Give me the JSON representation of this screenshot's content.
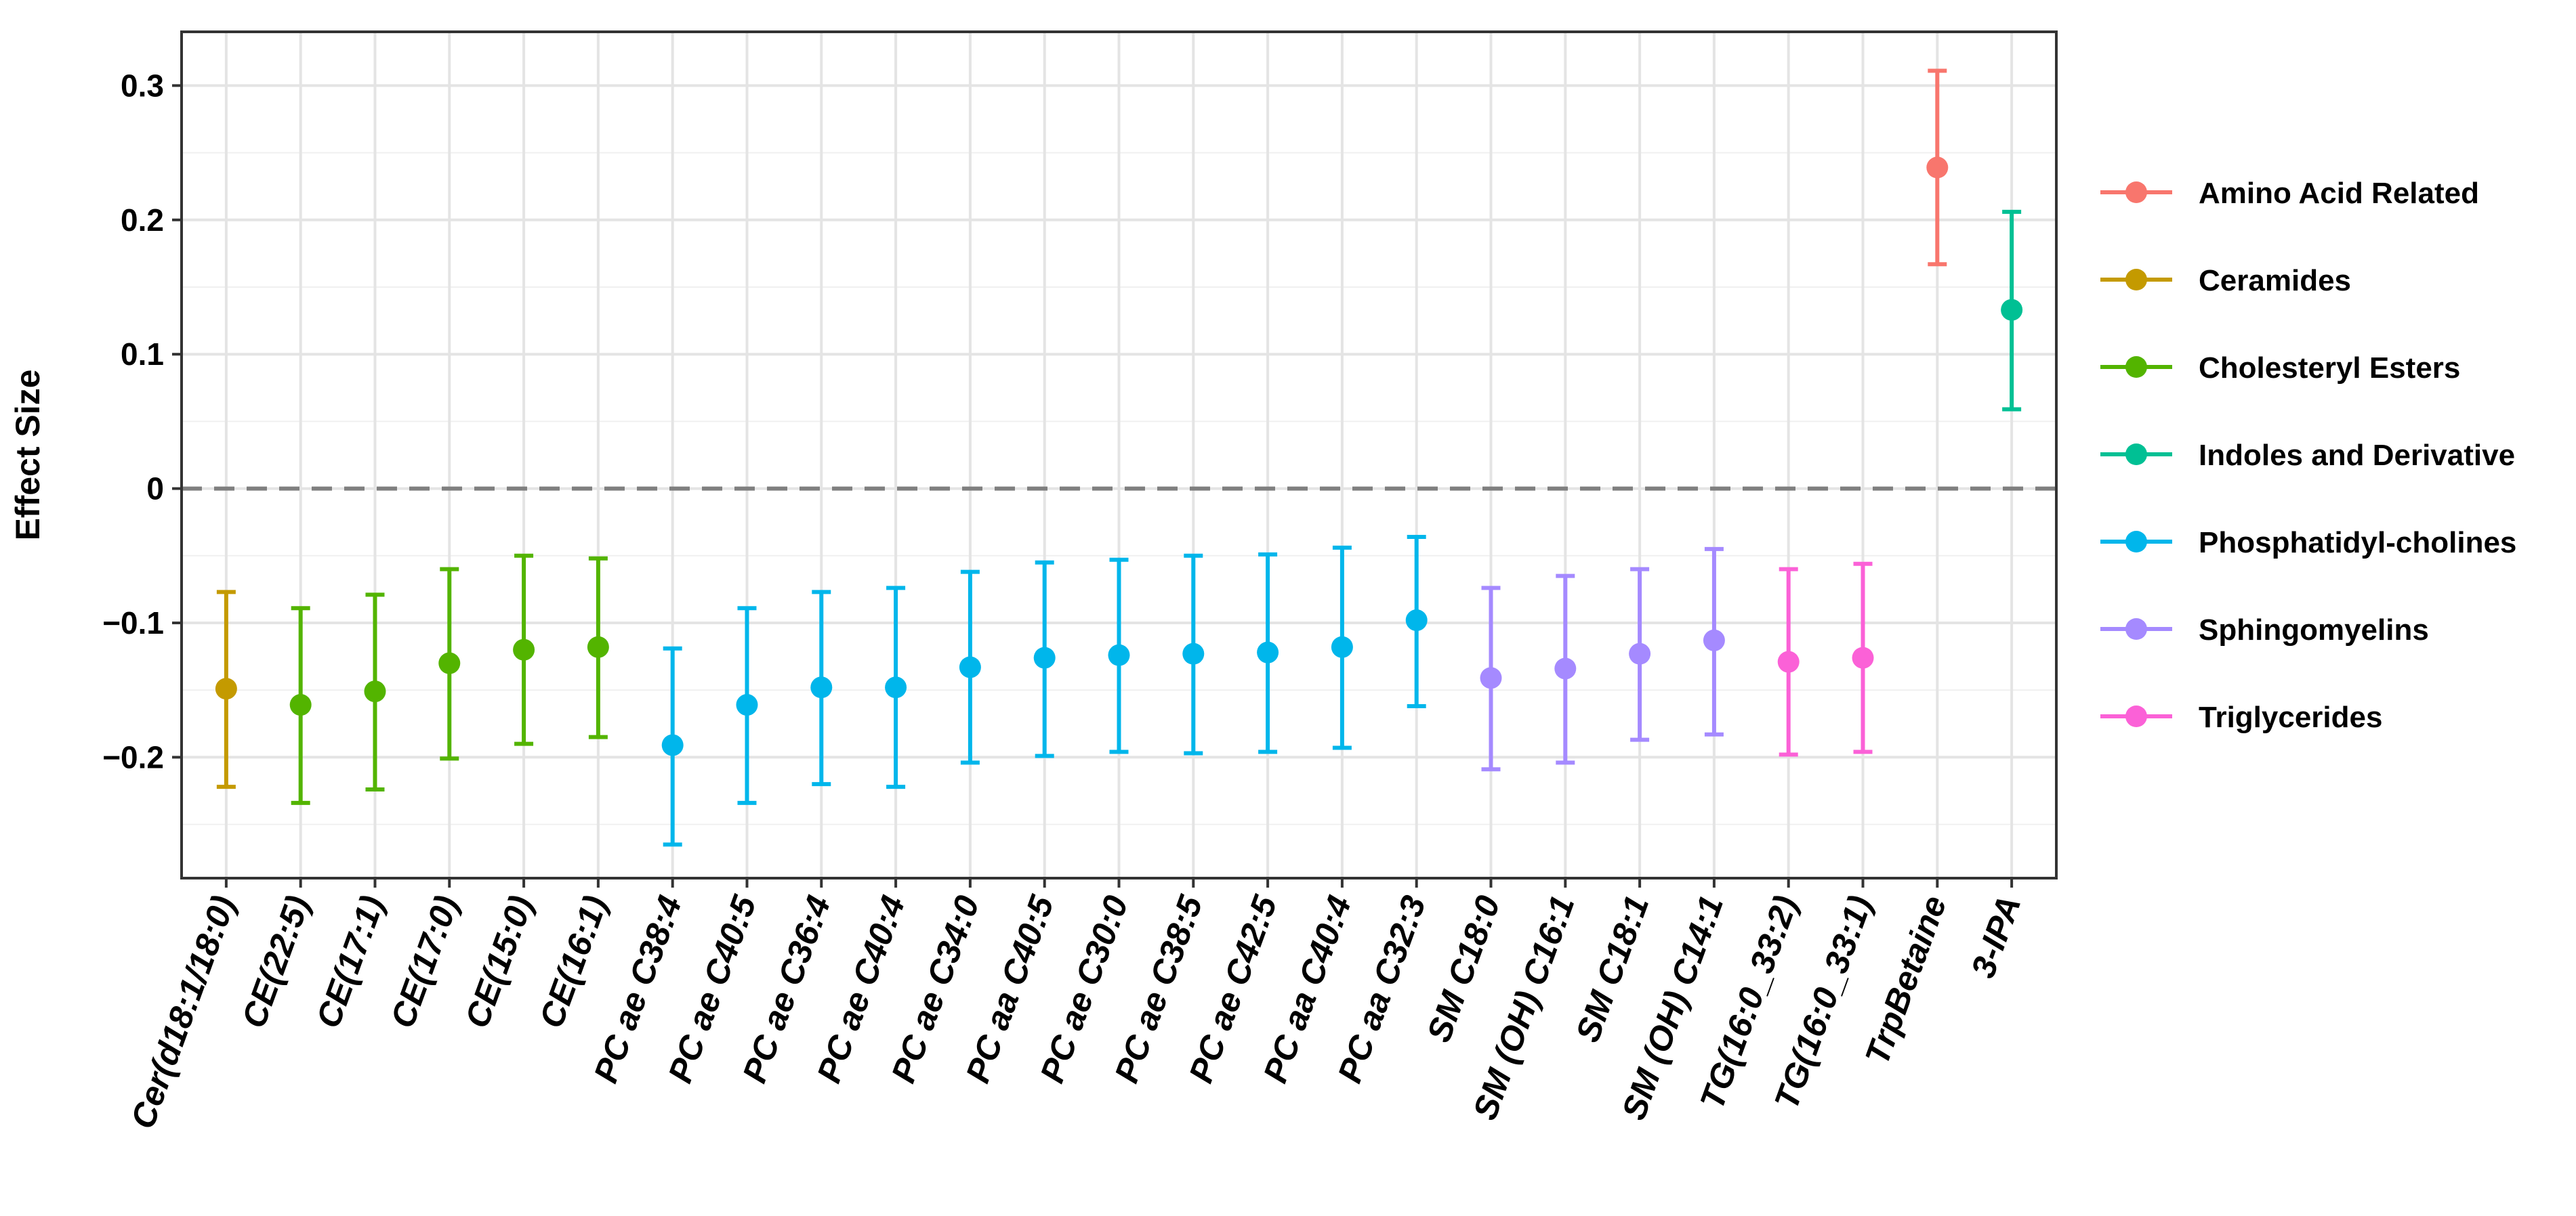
{
  "chart_data": {
    "type": "scatter",
    "title": "",
    "xlabel": "",
    "ylabel": "Effect Size",
    "ylim": [
      -0.29,
      0.34
    ],
    "yticks": [
      -0.2,
      -0.1,
      0,
      0.1,
      0.2,
      0.3
    ],
    "ytick_labels": [
      "−0.2",
      "−0.1",
      "0",
      "0.1",
      "0.2",
      "0.3"
    ],
    "reference_line": {
      "y": 0,
      "style": "dashed"
    },
    "grid": true,
    "legend_position": "right",
    "legend": [
      {
        "name": "Amino Acid Related",
        "color": "#F8766D"
      },
      {
        "name": "Ceramides",
        "color": "#C49A00"
      },
      {
        "name": "Cholesteryl Esters",
        "color": "#53B400"
      },
      {
        "name": "Indoles and Derivative",
        "color": "#00C094"
      },
      {
        "name": "Phosphatidyl-cholines",
        "color": "#00B6EB"
      },
      {
        "name": "Sphingomyelins",
        "color": "#A58AFF"
      },
      {
        "name": "Triglycerides",
        "color": "#FB61D7"
      }
    ],
    "categories": [
      "Cer(d18:1/18:0)",
      "CE(22:5)",
      "CE(17:1)",
      "CE(17:0)",
      "CE(15:0)",
      "CE(16:1)",
      "PC ae C38:4",
      "PC ae C40:5",
      "PC ae C36:4",
      "PC ae C40:4",
      "PC ae C34:0",
      "PC aa C40:5",
      "PC ae C30:0",
      "PC ae C38:5",
      "PC ae C42:5",
      "PC aa C40:4",
      "PC aa C32:3",
      "SM C18:0",
      "SM (OH) C16:1",
      "SM C18:1",
      "SM (OH) C14:1",
      "TG(16:0_33:2)",
      "TG(16:0_33:1)",
      "TrpBetaine",
      "3-IPA"
    ],
    "groups": [
      "Ceramides",
      "Cholesteryl Esters",
      "Cholesteryl Esters",
      "Cholesteryl Esters",
      "Cholesteryl Esters",
      "Cholesteryl Esters",
      "Phosphatidyl-cholines",
      "Phosphatidyl-cholines",
      "Phosphatidyl-cholines",
      "Phosphatidyl-cholines",
      "Phosphatidyl-cholines",
      "Phosphatidyl-cholines",
      "Phosphatidyl-cholines",
      "Phosphatidyl-cholines",
      "Phosphatidyl-cholines",
      "Phosphatidyl-cholines",
      "Phosphatidyl-cholines",
      "Sphingomyelins",
      "Sphingomyelins",
      "Sphingomyelins",
      "Sphingomyelins",
      "Triglycerides",
      "Triglycerides",
      "Amino Acid Related",
      "Indoles and Derivative"
    ],
    "values": [
      -0.149,
      -0.161,
      -0.151,
      -0.13,
      -0.12,
      -0.118,
      -0.191,
      -0.161,
      -0.148,
      -0.148,
      -0.133,
      -0.126,
      -0.124,
      -0.123,
      -0.122,
      -0.118,
      -0.098,
      -0.141,
      -0.134,
      -0.123,
      -0.113,
      -0.129,
      -0.126,
      0.239,
      0.133
    ],
    "lower": [
      -0.222,
      -0.234,
      -0.224,
      -0.201,
      -0.19,
      -0.185,
      -0.265,
      -0.234,
      -0.22,
      -0.222,
      -0.204,
      -0.199,
      -0.196,
      -0.197,
      -0.196,
      -0.193,
      -0.162,
      -0.209,
      -0.204,
      -0.187,
      -0.183,
      -0.198,
      -0.196,
      0.167,
      0.059
    ],
    "upper": [
      -0.077,
      -0.089,
      -0.079,
      -0.06,
      -0.05,
      -0.052,
      -0.119,
      -0.089,
      -0.077,
      -0.074,
      -0.062,
      -0.055,
      -0.053,
      -0.05,
      -0.049,
      -0.044,
      -0.036,
      -0.074,
      -0.065,
      -0.06,
      -0.045,
      -0.06,
      -0.056,
      0.311,
      0.206
    ]
  }
}
